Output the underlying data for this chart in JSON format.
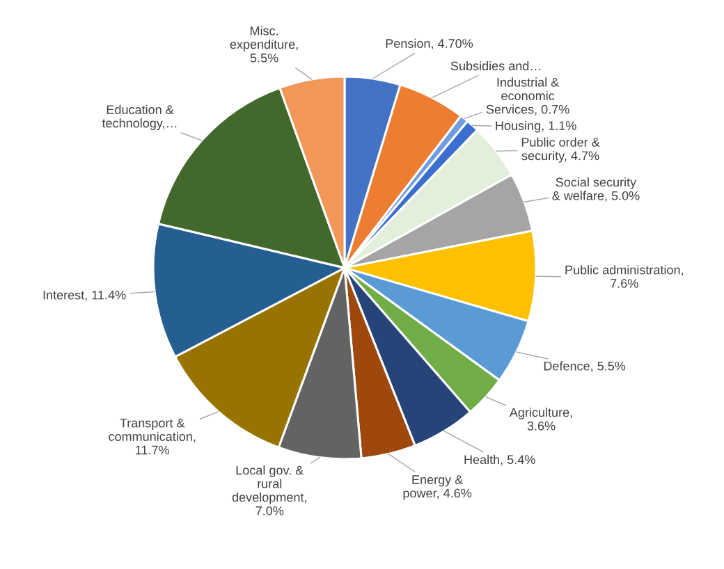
{
  "chart_data": {
    "type": "pie",
    "categories": [
      "Pension, 4.70%",
      "Subsidies and…",
      "Industrial &\neconomic\nServices, 0.7%",
      "Housing, 1.1%",
      "Public order &\nsecurity, 4.7%",
      "Social security\n& welfare, 5.0%",
      "Public administration,\n7.6%",
      "Defence, 5.5%",
      "Agriculture,\n3.6%",
      "Health, 5.4%",
      "Energy &\npower, 4.6%",
      "Local gov. &\nrural\ndevelopment,\n7.0%",
      "Transport &\ncommunication,\n11.7%",
      "Interest, 11.4%",
      "Education &\ntechnology,…",
      "Misc.\nexpenditure,\n5.5%"
    ],
    "values": [
      4.7,
      5.7,
      0.7,
      1.1,
      4.7,
      5.0,
      7.6,
      5.5,
      3.6,
      5.4,
      4.6,
      7.0,
      11.7,
      11.4,
      15.8,
      5.5
    ],
    "colors": [
      "#4472c4",
      "#ed7d31",
      "#6f9be0",
      "#3a6fd0",
      "#e2efda",
      "#a5a5a5",
      "#ffc000",
      "#5b9bd5",
      "#70ad47",
      "#264478",
      "#9e480e",
      "#636363",
      "#997300",
      "#255e91",
      "#43682b",
      "#f1975a"
    ]
  }
}
